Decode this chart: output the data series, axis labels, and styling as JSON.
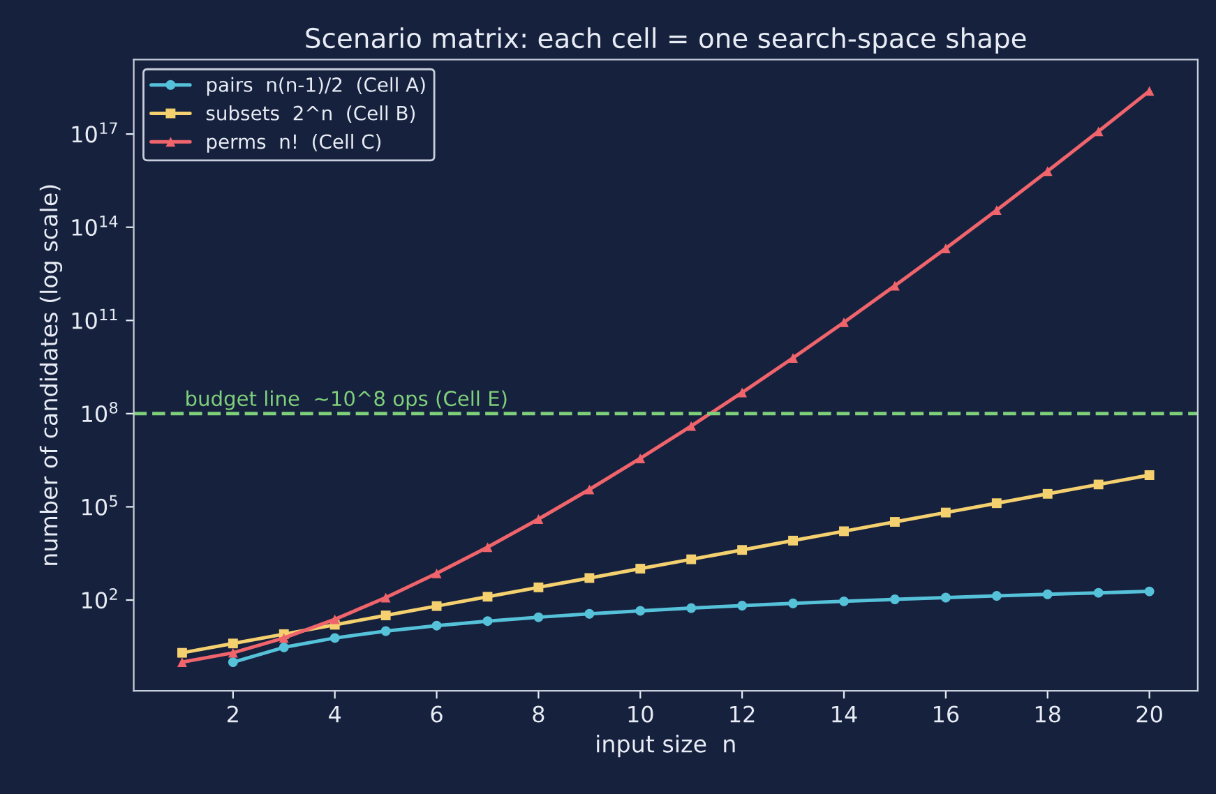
{
  "chart_data": {
    "type": "line",
    "title": "Scenario matrix: each cell = one search-space shape",
    "xlabel": "input size  n",
    "ylabel": "number of candidates (log scale)",
    "x": [
      1,
      2,
      3,
      4,
      5,
      6,
      7,
      8,
      9,
      10,
      11,
      12,
      13,
      14,
      15,
      16,
      17,
      18,
      19,
      20
    ],
    "series": [
      {
        "name": "pairs  n(n-1)/2  (Cell A)",
        "color": "#56c2da",
        "marker": "circle",
        "values": [
          null,
          1,
          3,
          6,
          10,
          15,
          21,
          28,
          36,
          45,
          55,
          66,
          78,
          91,
          105,
          120,
          136,
          153,
          171,
          190
        ]
      },
      {
        "name": "subsets  2^n  (Cell B)",
        "color": "#f4d06f",
        "marker": "square",
        "values": [
          2,
          4,
          8,
          16,
          32,
          64,
          128,
          256,
          512,
          1024,
          2048,
          4096,
          8192,
          16384,
          32768,
          65536,
          131072,
          262144,
          524288,
          1048576
        ]
      },
      {
        "name": "perms  n!  (Cell C)",
        "color": "#f0646c",
        "marker": "triangle",
        "values": [
          1,
          2,
          6,
          24,
          120,
          720,
          5040,
          40320,
          362880,
          3628800,
          39916800,
          479001600,
          6227020800,
          87178291200,
          1307674368000,
          20922789888000,
          355687428096000,
          6402373705728000,
          121645100408832000,
          2432902008176640000
        ]
      }
    ],
    "log": "y",
    "xlim": [
      0.05,
      20.95
    ],
    "xticks": [
      2,
      4,
      6,
      8,
      10,
      12,
      14,
      16,
      18,
      20
    ],
    "ylim": [
      0.12,
      2.5e+19
    ],
    "yticks": [
      {
        "value": 100,
        "label": "10$^{2}$"
      },
      {
        "value": 100000,
        "label": "10$^{5}$"
      },
      {
        "value": 100000000,
        "label": "10$^{8}$"
      },
      {
        "value": 100000000000,
        "label": "10$^{11}$"
      },
      {
        "value": 100000000000000,
        "label": "10$^{14}$"
      },
      {
        "value": 100000000000000000,
        "label": "10$^{17}$"
      }
    ],
    "ref_lines": [
      {
        "axis": "y",
        "value": 100000000,
        "label": "budget line  ~10^8 ops (Cell E)",
        "color": "#7fd07a",
        "line_style": "dashed"
      }
    ],
    "grid": false,
    "legend": "top left",
    "line_style": "solid"
  }
}
